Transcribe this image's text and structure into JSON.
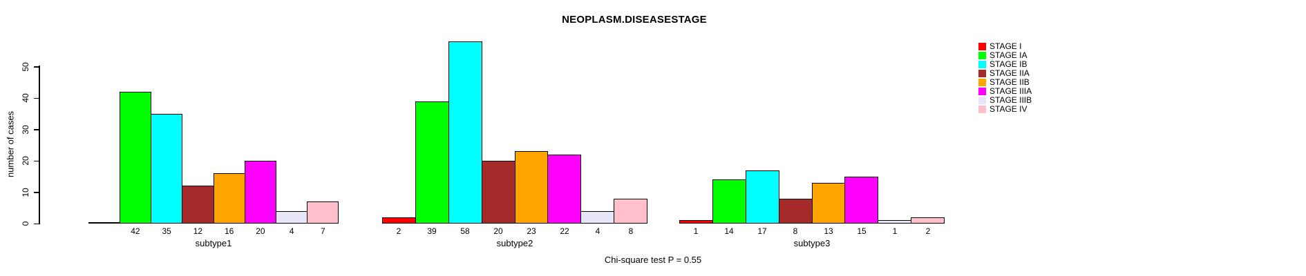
{
  "title": "NEOPLASM.DISEASESTAGE",
  "footnote": "Chi-square test P = 0.55",
  "y_axis": {
    "label": "number of cases",
    "ticks": [
      0,
      10,
      20,
      30,
      40,
      50
    ]
  },
  "legend": {
    "items": [
      {
        "label": "STAGE I",
        "color": "#FF0000"
      },
      {
        "label": "STAGE IA",
        "color": "#00FF00"
      },
      {
        "label": "STAGE IB",
        "color": "#00FFFF"
      },
      {
        "label": "STAGE IIA",
        "color": "#A52A2A"
      },
      {
        "label": "STAGE IIB",
        "color": "#FFA500"
      },
      {
        "label": "STAGE IIIA",
        "color": "#FF00FF"
      },
      {
        "label": "STAGE IIIB",
        "color": "#E6E6FA"
      },
      {
        "label": "STAGE IV",
        "color": "#FFC0CB"
      }
    ]
  },
  "chart_data": {
    "type": "bar",
    "title": "NEOPLASM.DISEASESTAGE",
    "xlabel": "",
    "ylabel": "number of cases",
    "ylim": [
      0,
      58
    ],
    "y_ticks": [
      0,
      10,
      20,
      30,
      40,
      50
    ],
    "grid": false,
    "legend_position": "right",
    "annotation": "Chi-square test P = 0.55",
    "categories": [
      "subtype1",
      "subtype2",
      "subtype3"
    ],
    "stages": [
      "STAGE I",
      "STAGE IA",
      "STAGE IB",
      "STAGE IIA",
      "STAGE IIB",
      "STAGE IIIA",
      "STAGE IIIB",
      "STAGE IV"
    ],
    "colors": [
      "#FF0000",
      "#00FF00",
      "#00FFFF",
      "#A52A2A",
      "#FFA500",
      "#FF00FF",
      "#E6E6FA",
      "#FFC0CB"
    ],
    "series": [
      {
        "name": "STAGE I",
        "color": "#FF0000",
        "values": [
          0,
          2,
          1
        ]
      },
      {
        "name": "STAGE IA",
        "color": "#00FF00",
        "values": [
          42,
          39,
          14
        ]
      },
      {
        "name": "STAGE IB",
        "color": "#00FFFF",
        "values": [
          35,
          58,
          17
        ]
      },
      {
        "name": "STAGE IIA",
        "color": "#A52A2A",
        "values": [
          12,
          20,
          8
        ]
      },
      {
        "name": "STAGE IIB",
        "color": "#FFA500",
        "values": [
          16,
          23,
          13
        ]
      },
      {
        "name": "STAGE IIIA",
        "color": "#FF00FF",
        "values": [
          20,
          22,
          15
        ]
      },
      {
        "name": "STAGE IIIB",
        "color": "#E6E6FA",
        "values": [
          4,
          4,
          1
        ]
      },
      {
        "name": "STAGE IV",
        "color": "#FFC0CB",
        "values": [
          7,
          8,
          2
        ]
      }
    ],
    "groups": [
      {
        "label": "subtype1",
        "values": [
          0,
          42,
          35,
          12,
          16,
          20,
          4,
          7
        ],
        "value_labels": [
          "",
          "42",
          "35",
          "12",
          "16",
          "20",
          "4",
          "7"
        ]
      },
      {
        "label": "subtype2",
        "values": [
          2,
          39,
          58,
          20,
          23,
          22,
          4,
          8
        ],
        "value_labels": [
          "2",
          "39",
          "58",
          "20",
          "23",
          "22",
          "4",
          "8"
        ]
      },
      {
        "label": "subtype3",
        "values": [
          1,
          14,
          17,
          8,
          13,
          15,
          1,
          2
        ],
        "value_labels": [
          "1",
          "14",
          "17",
          "8",
          "13",
          "15",
          "1",
          "2"
        ]
      }
    ]
  }
}
